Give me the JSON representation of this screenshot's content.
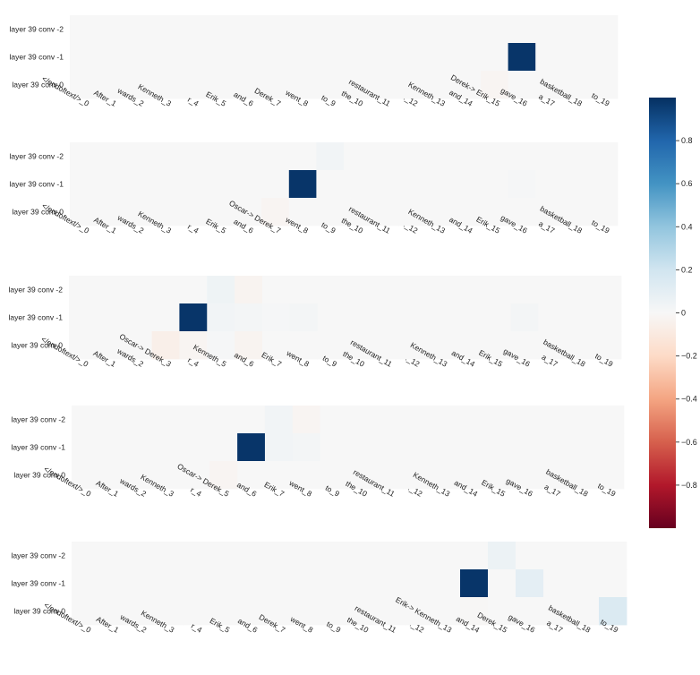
{
  "chart_data": [
    {
      "type": "heatmap",
      "y_labels": [
        "layer 39 conv -2",
        "layer 39 conv -1",
        "layer 39 conv 0"
      ],
      "x_labels": [
        "</endoftext/>_0",
        "After_1",
        "wards_2",
        "Kenneth_3",
        "r_4",
        "Erik_5",
        "and_6",
        "Derek_7",
        "went_8",
        "to_9",
        "the_10",
        "restaurant_11",
        "._12",
        "Kenneth_13",
        "and_14",
        "Derek-> Erik_15",
        "gave_16",
        "a_17",
        "basketball_18",
        "to_19"
      ],
      "values": [
        [
          0,
          0,
          0,
          0,
          0,
          0,
          0,
          0,
          0,
          0,
          0,
          0,
          0,
          0,
          0,
          0,
          0,
          0,
          0,
          0
        ],
        [
          0,
          0,
          0,
          0,
          0,
          0,
          0,
          0,
          0,
          0,
          0,
          0,
          0,
          0,
          0,
          0,
          0.98,
          0,
          0,
          0
        ],
        [
          0,
          0,
          0,
          0,
          0,
          0,
          0,
          0,
          0,
          0,
          0,
          0,
          0,
          0,
          0,
          -0.02,
          0,
          0,
          0,
          0
        ]
      ]
    },
    {
      "type": "heatmap",
      "y_labels": [
        "layer 39 conv -2",
        "layer 39 conv -1",
        "layer 39 conv 0"
      ],
      "x_labels": [
        "</endoftext/>_0",
        "After_1",
        "wards_2",
        "Kenneth_3",
        "r_4",
        "Erik_5",
        "and_6",
        "Oscar-> Derek_7",
        "went_8",
        "to_9",
        "the_10",
        "restaurant_11",
        "._12",
        "Kenneth_13",
        "and_14",
        "Erik_15",
        "gave_16",
        "a_17",
        "basketball_18",
        "to_19"
      ],
      "values": [
        [
          0,
          0,
          0,
          0,
          0,
          0,
          0,
          0,
          0,
          0.03,
          0,
          0,
          0,
          0,
          0,
          0,
          0,
          0,
          0,
          0
        ],
        [
          0,
          0,
          0,
          0,
          0,
          0,
          0,
          0,
          0.98,
          0,
          0,
          0,
          0,
          0,
          0,
          0,
          0.01,
          0,
          0,
          0
        ],
        [
          0,
          0,
          0,
          0,
          0,
          0,
          0,
          -0.02,
          0,
          0,
          0,
          0,
          0,
          0,
          0,
          0,
          0,
          0,
          0,
          0
        ]
      ]
    },
    {
      "type": "heatmap",
      "y_labels": [
        "layer 39 conv -2",
        "layer 39 conv -1",
        "layer 39 conv 0"
      ],
      "x_labels": [
        "</endoftext/>_0",
        "After_1",
        "wards_2",
        "Oscar-> Derek_3",
        "r_4",
        "Kenneth_5",
        "and_6",
        "Erik_7",
        "went_8",
        "to_9",
        "the_10",
        "restaurant_11",
        "._12",
        "Kenneth_13",
        "and_14",
        "Erik_15",
        "gave_16",
        "a_17",
        "basketball_18",
        "to_19"
      ],
      "values": [
        [
          0,
          0,
          0,
          0,
          0,
          0.05,
          -0.03,
          0,
          0,
          0,
          0,
          0,
          0,
          0,
          0,
          0,
          0,
          0,
          0,
          0
        ],
        [
          0,
          0,
          0,
          0,
          0.98,
          0.03,
          0.02,
          0.01,
          0.02,
          0,
          0,
          0,
          0,
          0,
          0,
          0,
          0.02,
          0,
          0,
          0
        ],
        [
          0,
          0,
          0,
          -0.06,
          -0.02,
          0.01,
          -0.03,
          0,
          0,
          0,
          0,
          0,
          0,
          0,
          0,
          0,
          0,
          0,
          0,
          0
        ]
      ]
    },
    {
      "type": "heatmap",
      "y_labels": [
        "layer 39 conv -2",
        "layer 39 conv -1",
        "layer 39 conv 0"
      ],
      "x_labels": [
        "</endoftext/>_0",
        "After_1",
        "wards_2",
        "Kenneth_3",
        "r_4",
        "Oscar-> Derek_5",
        "and_6",
        "Erik_7",
        "went_8",
        "to_9",
        "the_10",
        "restaurant_11",
        "._12",
        "Kenneth_13",
        "and_14",
        "Erik_15",
        "gave_16",
        "a_17",
        "basketball_18",
        "to_19"
      ],
      "values": [
        [
          0,
          0,
          0,
          0,
          0,
          0,
          0,
          0.03,
          -0.02,
          0,
          0,
          0,
          0,
          0,
          0,
          0,
          0,
          0,
          0,
          0
        ],
        [
          0,
          0,
          0,
          0,
          0,
          0,
          0.98,
          0.03,
          0.02,
          0,
          0,
          0,
          0,
          0,
          0,
          0,
          0,
          0,
          0,
          0
        ],
        [
          0,
          0,
          0,
          0,
          0,
          -0.02,
          0,
          0,
          0,
          0,
          0,
          0,
          0,
          0,
          0,
          0,
          0,
          0,
          0,
          0
        ]
      ]
    },
    {
      "type": "heatmap",
      "y_labels": [
        "layer 39 conv -2",
        "layer 39 conv -1",
        "layer 39 conv 0"
      ],
      "x_labels": [
        "</endoftext/>_0",
        "After_1",
        "wards_2",
        "Kenneth_3",
        "r_4",
        "Erik_5",
        "and_6",
        "Derek_7",
        "went_8",
        "to_9",
        "the_10",
        "restaurant_11",
        "._12",
        "Erik-> Kenneth_13",
        "and_14",
        "Derek_15",
        "gave_16",
        "a_17",
        "basketball_18",
        "to_19"
      ],
      "values": [
        [
          0,
          0,
          0,
          0,
          0,
          0,
          0,
          0,
          0,
          0,
          0,
          0,
          0,
          0,
          0,
          0.06,
          0,
          0,
          0,
          0
        ],
        [
          0,
          0,
          0,
          0,
          0,
          0,
          0,
          0,
          0,
          0,
          0,
          0,
          0,
          0,
          0.98,
          0,
          0.1,
          0,
          0,
          0
        ],
        [
          0,
          0,
          0,
          0,
          0,
          0,
          0,
          0,
          0,
          0,
          0,
          0,
          0,
          0,
          -0.01,
          0,
          0,
          0,
          0,
          0.15
        ]
      ]
    }
  ],
  "colorbar": {
    "colorscale": "RdBu",
    "zmin": -1,
    "zmax": 1,
    "ticks": [
      {
        "value": 0.8,
        "label": "0.8"
      },
      {
        "value": 0.6,
        "label": "0.6"
      },
      {
        "value": 0.4,
        "label": "0.4"
      },
      {
        "value": 0.2,
        "label": "0.2"
      },
      {
        "value": 0,
        "label": "0"
      },
      {
        "value": -0.2,
        "label": "−0.2"
      },
      {
        "value": -0.4,
        "label": "−0.4"
      },
      {
        "value": -0.6,
        "label": "−0.6"
      },
      {
        "value": -0.8,
        "label": "−0.8"
      }
    ]
  }
}
